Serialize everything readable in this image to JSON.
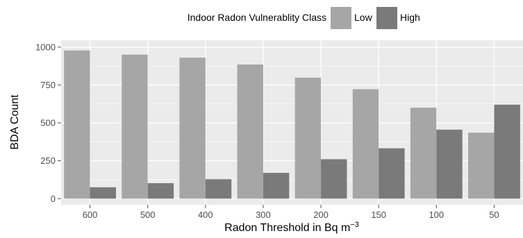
{
  "chart_data": {
    "type": "bar",
    "title": "",
    "xlabel": "Radon Threshold in Bq m",
    "xlabel_superscript": "−3",
    "ylabel": "BDA Count",
    "categories": [
      "600",
      "500",
      "400",
      "300",
      "200",
      "150",
      "100",
      "50"
    ],
    "series": [
      {
        "name": "Low",
        "color": "#a6a6a6",
        "values": [
          978,
          950,
          930,
          885,
          798,
          722,
          600,
          435
        ]
      },
      {
        "name": "High",
        "color": "#7a7a7a",
        "values": [
          75,
          102,
          128,
          170,
          260,
          332,
          455,
          620
        ]
      }
    ],
    "ylim": [
      -40,
      1045
    ],
    "yticks": [
      0,
      250,
      500,
      750,
      1000
    ],
    "ytick_labels": [
      "0",
      "250",
      "500",
      "750",
      "1000"
    ],
    "legend": {
      "title": "Indoor Radon Vulnerablity Class",
      "position": "top"
    },
    "grid": true,
    "panel_color": "#ebebeb",
    "grid_color": "#ffffff"
  }
}
